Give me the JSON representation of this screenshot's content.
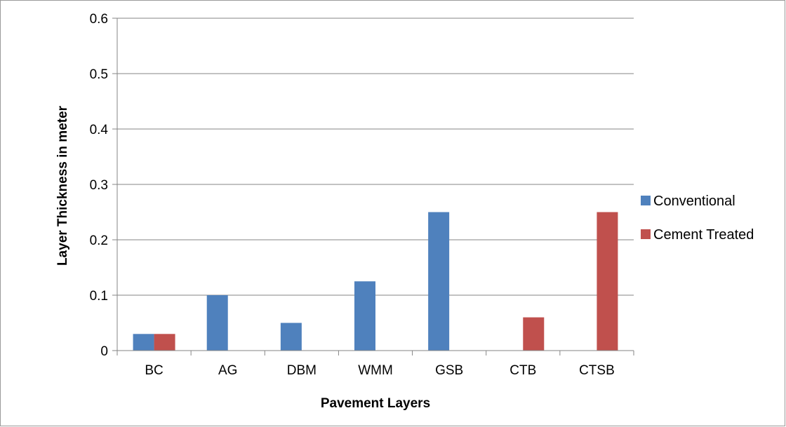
{
  "chart_data": {
    "type": "bar",
    "title": "",
    "xlabel": "Pavement Layers",
    "ylabel": "Layer Thickness in meter",
    "categories": [
      "BC",
      "AG",
      "DBM",
      "WMM",
      "GSB",
      "CTB",
      "CTSB"
    ],
    "series": [
      {
        "name": "Conventional",
        "color": "#4f81bd",
        "values": [
          0.03,
          0.1,
          0.05,
          0.125,
          0.25,
          0,
          0
        ]
      },
      {
        "name": "Cement Treated",
        "color": "#c0504d",
        "values": [
          0.03,
          0,
          0,
          0,
          0,
          0.06,
          0.25
        ]
      }
    ],
    "ylim": [
      0,
      0.6
    ],
    "yticks": [
      0,
      0.1,
      0.2,
      0.3,
      0.4,
      0.5,
      0.6
    ],
    "ytick_labels": [
      "0",
      "0.1",
      "0.2",
      "0.3",
      "0.4",
      "0.5",
      "0.6"
    ],
    "grid": true,
    "legend": "right"
  }
}
